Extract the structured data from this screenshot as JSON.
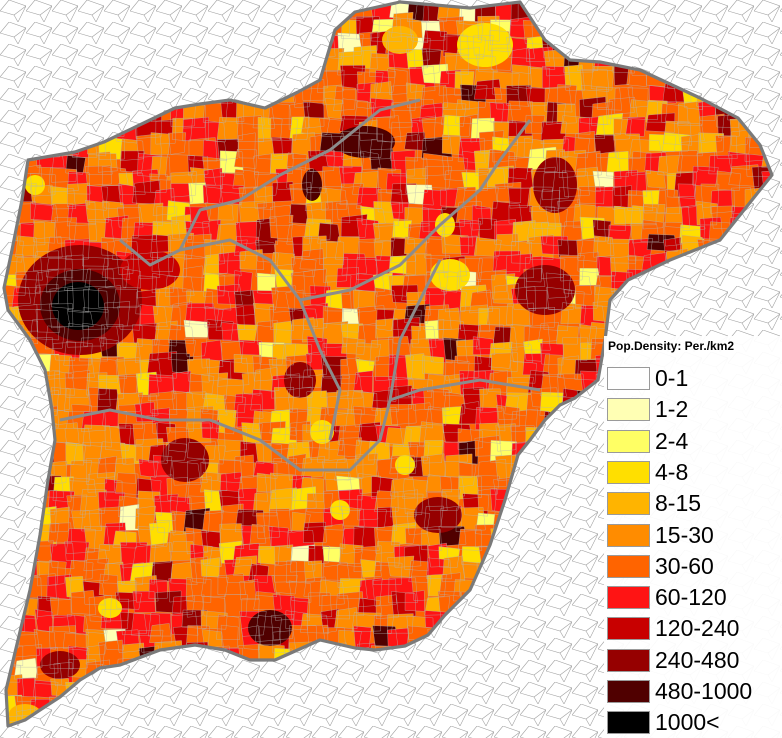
{
  "legend": {
    "title": "Pop.Density: Per./km2",
    "classes": [
      {
        "label": "0-1",
        "color": "#ffffff"
      },
      {
        "label": "1-2",
        "color": "#ffffb4"
      },
      {
        "label": "2-4",
        "color": "#ffff64"
      },
      {
        "label": "4-8",
        "color": "#ffdf00"
      },
      {
        "label": "8-15",
        "color": "#ffb400"
      },
      {
        "label": "15-30",
        "color": "#ff8c00"
      },
      {
        "label": "30-60",
        "color": "#ff6400"
      },
      {
        "label": "60-120",
        "color": "#ff1414"
      },
      {
        "label": "120-240",
        "color": "#c80000"
      },
      {
        "label": "240-480",
        "color": "#960000"
      },
      {
        "label": "480-1000",
        "color": "#500000"
      },
      {
        "label": "1000<",
        "color": "#000000"
      }
    ]
  }
}
